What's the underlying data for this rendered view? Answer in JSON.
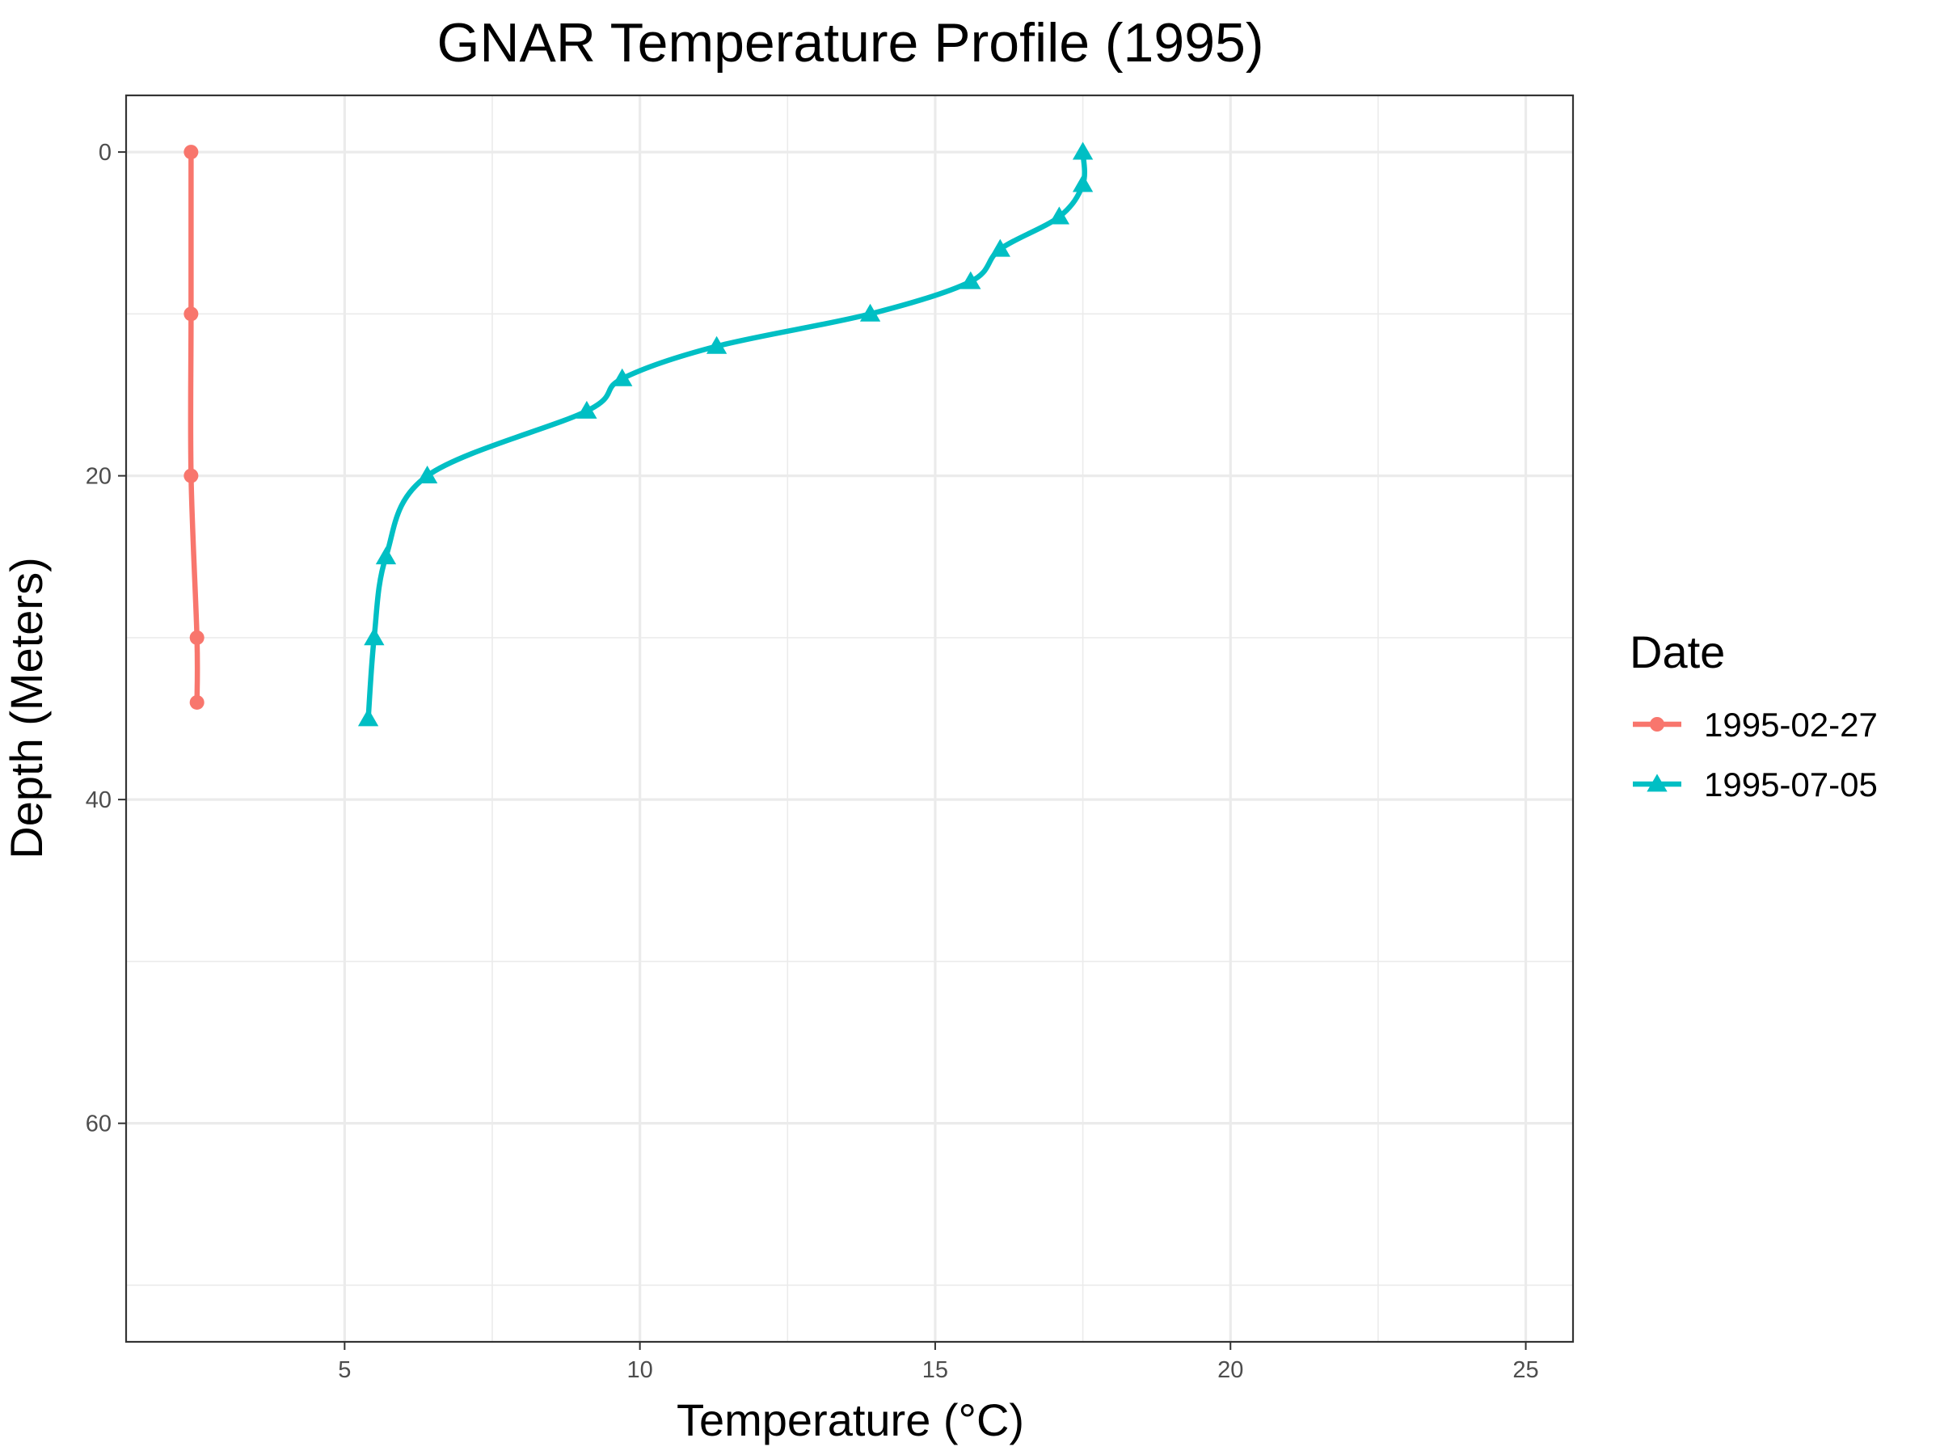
{
  "chart_data": {
    "type": "line",
    "title": "GNAR Temperature Profile (1995)",
    "xlabel": "Temperature (°C)",
    "ylabel": "Depth (Meters)",
    "xlim": [
      1.3,
      25.8
    ],
    "ylim": [
      -3.5,
      73.5
    ],
    "y_reversed": true,
    "x_ticks": [
      5,
      10,
      15,
      20,
      25
    ],
    "x_tick_labels": [
      "5",
      "10",
      "15",
      "20",
      "25"
    ],
    "y_ticks": [
      0,
      20,
      40,
      60
    ],
    "y_tick_labels": [
      "0",
      "20",
      "40",
      "60"
    ],
    "x_minor": [
      7.5,
      12.5,
      17.5,
      22.5
    ],
    "y_minor": [
      10,
      30,
      50,
      70
    ],
    "grid": true,
    "legend": {
      "title": "Date",
      "position": "right",
      "entries": [
        "1995-02-27",
        "1995-07-05"
      ]
    },
    "series": [
      {
        "name": "1995-02-27",
        "color": "#F8766D",
        "marker": "circle",
        "points": [
          {
            "x": 2.4,
            "y": 0
          },
          {
            "x": 2.4,
            "y": 10
          },
          {
            "x": 2.4,
            "y": 20
          },
          {
            "x": 2.5,
            "y": 30
          },
          {
            "x": 2.5,
            "y": 34
          }
        ]
      },
      {
        "name": "1995-07-05",
        "color": "#00BFC4",
        "marker": "triangle",
        "points": [
          {
            "x": 17.5,
            "y": 0
          },
          {
            "x": 17.5,
            "y": 2
          },
          {
            "x": 17.1,
            "y": 4
          },
          {
            "x": 16.1,
            "y": 6
          },
          {
            "x": 15.6,
            "y": 8
          },
          {
            "x": 13.9,
            "y": 10
          },
          {
            "x": 11.3,
            "y": 12
          },
          {
            "x": 9.7,
            "y": 14
          },
          {
            "x": 9.1,
            "y": 16
          },
          {
            "x": 6.4,
            "y": 20
          },
          {
            "x": 5.7,
            "y": 25
          },
          {
            "x": 5.5,
            "y": 30
          },
          {
            "x": 5.4,
            "y": 35
          }
        ]
      }
    ]
  }
}
